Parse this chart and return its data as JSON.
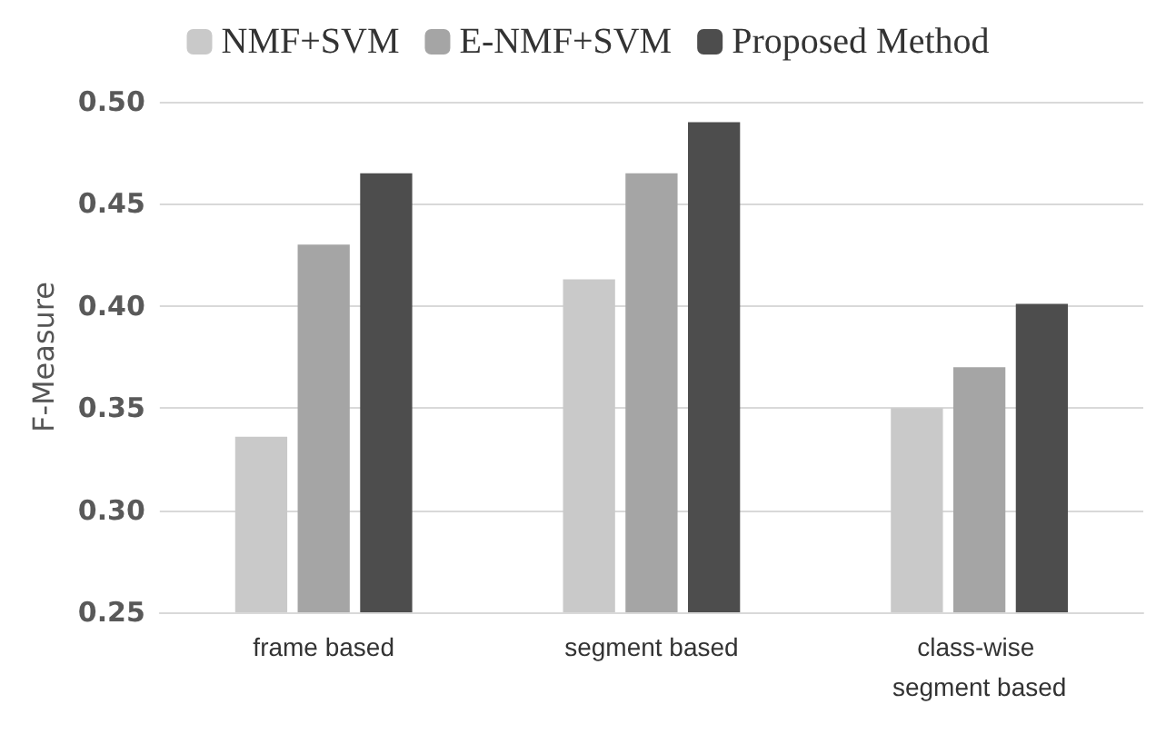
{
  "chart_data": {
    "type": "bar",
    "ylabel": "F-Measure",
    "categories": [
      "frame based",
      "segment based",
      "class-wise segment based"
    ],
    "series": [
      {
        "name": "NMF+SVM",
        "color": "#c9c9c9",
        "values": [
          0.336,
          0.413,
          0.35
        ]
      },
      {
        "name": "E-NMF+SVM",
        "color": "#a5a5a5",
        "values": [
          0.43,
          0.465,
          0.37
        ]
      },
      {
        "name": "Proposed Method",
        "color": "#4d4d4d",
        "values": [
          0.465,
          0.49,
          0.401
        ]
      }
    ],
    "ylim": [
      0.25,
      0.5
    ],
    "yticks": [
      0.25,
      {
        "value": 0.3,
        "label": "0.30"
      },
      0.35,
      {
        "value": 0.4,
        "label": "0.40"
      },
      0.45,
      {
        "value": 0.5,
        "label": "0.50"
      }
    ],
    "grid": "y",
    "legend": "top"
  }
}
